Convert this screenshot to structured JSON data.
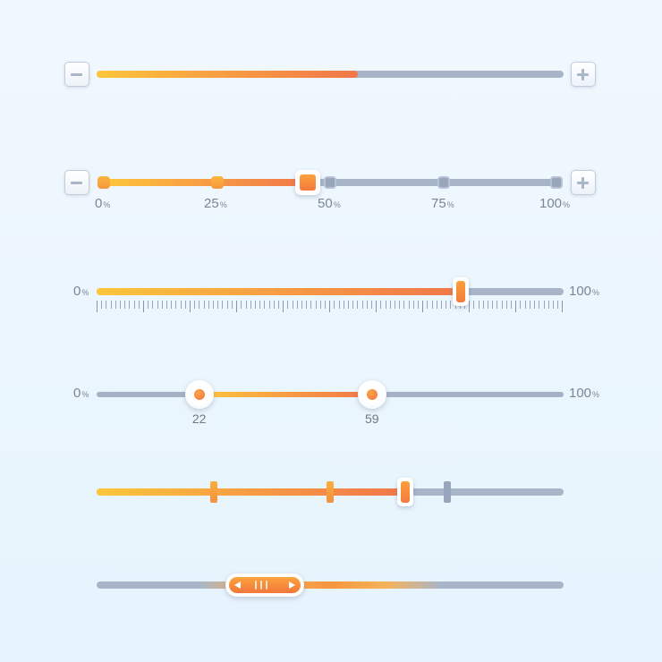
{
  "sliders": {
    "simple": {
      "value": 0.56,
      "minus_icon": "minus-icon",
      "plus_icon": "plus-icon"
    },
    "stepped": {
      "value": 0.45,
      "labels": [
        {
          "num": "0",
          "unit": "%"
        },
        {
          "num": "25",
          "unit": "%"
        },
        {
          "num": "50",
          "unit": "%"
        },
        {
          "num": "75",
          "unit": "%"
        },
        {
          "num": "100",
          "unit": "%"
        }
      ]
    },
    "ruler": {
      "value": 0.78,
      "min_label": {
        "num": "0",
        "unit": "%"
      },
      "max_label": {
        "num": "100",
        "unit": "%"
      }
    },
    "range": {
      "low": 22,
      "high": 59,
      "low_label": "22",
      "high_label": "59",
      "min_label": {
        "num": "0",
        "unit": "%"
      },
      "max_label": {
        "num": "100",
        "unit": "%"
      }
    },
    "marked": {
      "value": 0.66,
      "marks": [
        0.25,
        0.5,
        0.75
      ]
    },
    "scroll": {
      "position": 0.36,
      "left_arrow_icon": "triangle-left-icon",
      "right_arrow_icon": "triangle-right-icon",
      "grip_icon": "grip-lines-icon"
    }
  },
  "colors": {
    "fill_start": "#fdc63b",
    "fill_end": "#f0774a",
    "track": "#a8b5c9",
    "background": "#eef7fe"
  }
}
